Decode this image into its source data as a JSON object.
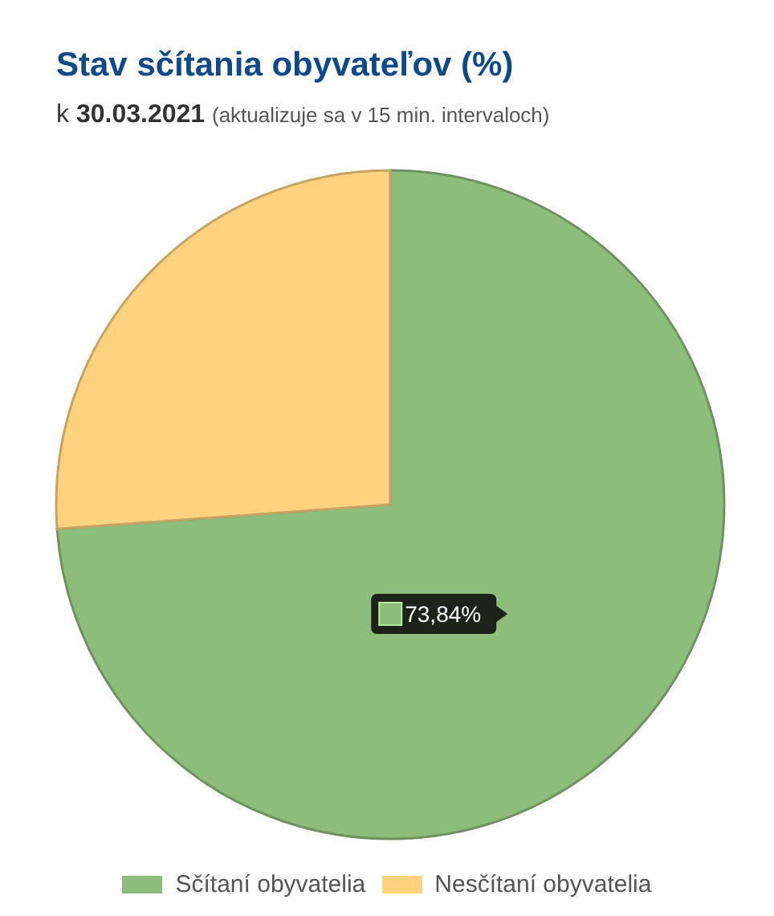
{
  "chart_data": {
    "type": "pie",
    "title": "Stav sčítania obyvateľov (%)",
    "subtitle": "k 30.03.2021 (aktualizuje sa v 15 min. intervaloch)",
    "categories": [
      "Sčítaní obyvatelia",
      "Nesčítaní obyvatelia"
    ],
    "values": [
      73.84,
      26.16
    ],
    "colors": [
      "#8dbd7b",
      "#fed27f"
    ],
    "value_labels": [
      "73,84%",
      null
    ],
    "legend": "bottom"
  }
}
